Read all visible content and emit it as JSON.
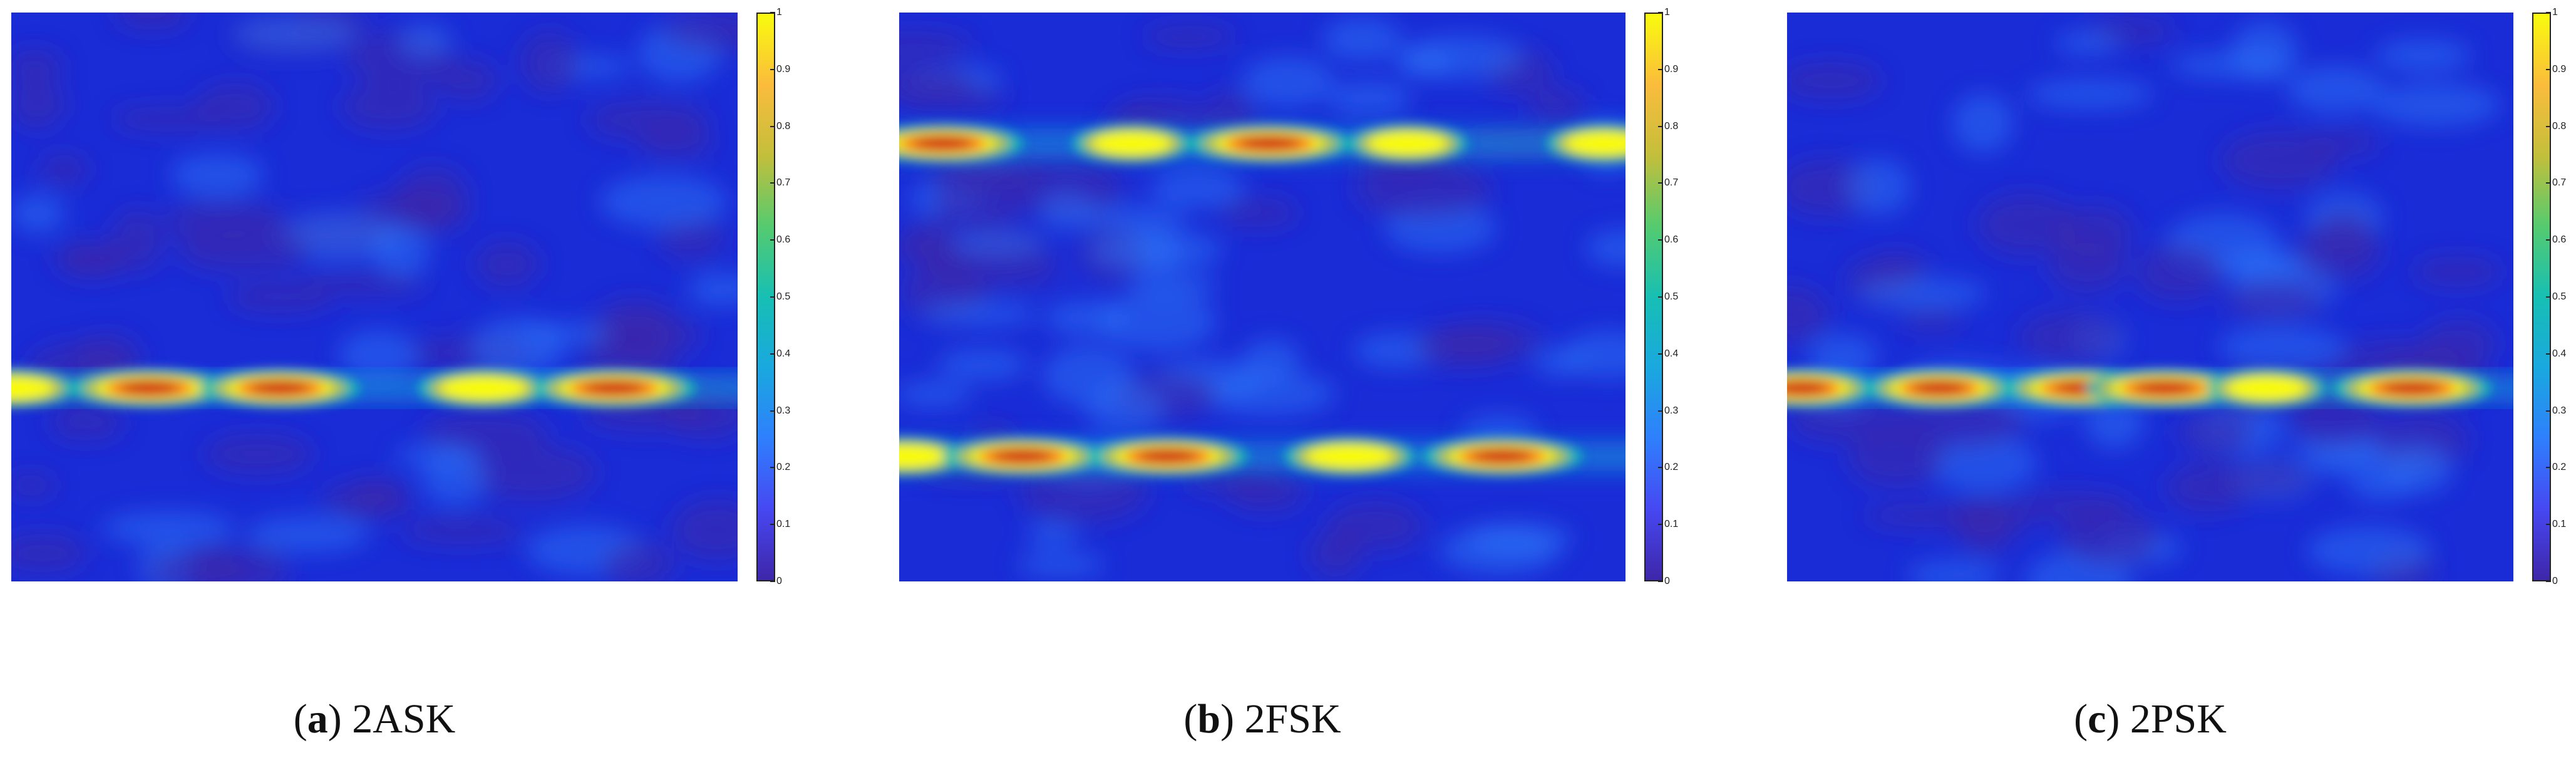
{
  "colors": {
    "background_blue": "#1a2cd6",
    "colormap": [
      "#3e26a8",
      "#4748f2",
      "#2f7ffd",
      "#1aa8df",
      "#17bfb4",
      "#55cb6f",
      "#c3bf3b",
      "#fbbc3c",
      "#f9fb0e"
    ],
    "hot_core": "#c8121b",
    "hot_mid": "#ff7a1a"
  },
  "chart_data": [
    {
      "type": "heatmap",
      "caption": {
        "letter": "a",
        "label": "2ASK"
      },
      "colorbar": {
        "min": 0,
        "max": 1,
        "ticks": [
          "1",
          "0.9",
          "0.8",
          "0.7",
          "0.6",
          "0.5",
          "0.4",
          "0.3",
          "0.2",
          "0.1",
          "0"
        ]
      },
      "peaks": [
        {
          "x": 0.0,
          "y": 0.66,
          "value": 0.55
        },
        {
          "x": 0.19,
          "y": 0.66,
          "value": 0.95
        },
        {
          "x": 0.37,
          "y": 0.66,
          "value": 0.95
        },
        {
          "x": 0.65,
          "y": 0.66,
          "value": 0.6
        },
        {
          "x": 0.83,
          "y": 0.66,
          "value": 1.0
        }
      ]
    },
    {
      "type": "heatmap",
      "caption": {
        "letter": "b",
        "label": "2FSK"
      },
      "colorbar": {
        "min": 0,
        "max": 1,
        "ticks": [
          "1",
          "0.9",
          "0.8",
          "0.7",
          "0.6",
          "0.5",
          "0.4",
          "0.3",
          "0.2",
          "0.1",
          "0"
        ]
      },
      "peaks": [
        {
          "x": 0.06,
          "y": 0.23,
          "value": 0.95
        },
        {
          "x": 0.32,
          "y": 0.23,
          "value": 0.45
        },
        {
          "x": 0.51,
          "y": 0.23,
          "value": 1.0
        },
        {
          "x": 0.7,
          "y": 0.23,
          "value": 0.45
        },
        {
          "x": 0.97,
          "y": 0.23,
          "value": 0.4
        },
        {
          "x": 0.01,
          "y": 0.78,
          "value": 0.45
        },
        {
          "x": 0.17,
          "y": 0.78,
          "value": 0.95
        },
        {
          "x": 0.37,
          "y": 0.78,
          "value": 0.95
        },
        {
          "x": 0.62,
          "y": 0.78,
          "value": 0.6
        },
        {
          "x": 0.83,
          "y": 0.78,
          "value": 0.95
        }
      ]
    },
    {
      "type": "heatmap",
      "caption": {
        "letter": "c",
        "label": "2PSK"
      },
      "colorbar": {
        "min": 0,
        "max": 1,
        "ticks": [
          "1",
          "0.9",
          "0.8",
          "0.7",
          "0.6",
          "0.5",
          "0.4",
          "0.3",
          "0.2",
          "0.1",
          "0"
        ]
      },
      "peaks": [
        {
          "x": 0.02,
          "y": 0.66,
          "value": 0.75
        },
        {
          "x": 0.21,
          "y": 0.66,
          "value": 0.8
        },
        {
          "x": 0.41,
          "y": 0.66,
          "value": 1.0
        },
        {
          "x": 0.52,
          "y": 0.66,
          "value": 0.95
        },
        {
          "x": 0.66,
          "y": 0.66,
          "value": 0.45
        },
        {
          "x": 0.86,
          "y": 0.66,
          "value": 0.95
        }
      ]
    }
  ]
}
